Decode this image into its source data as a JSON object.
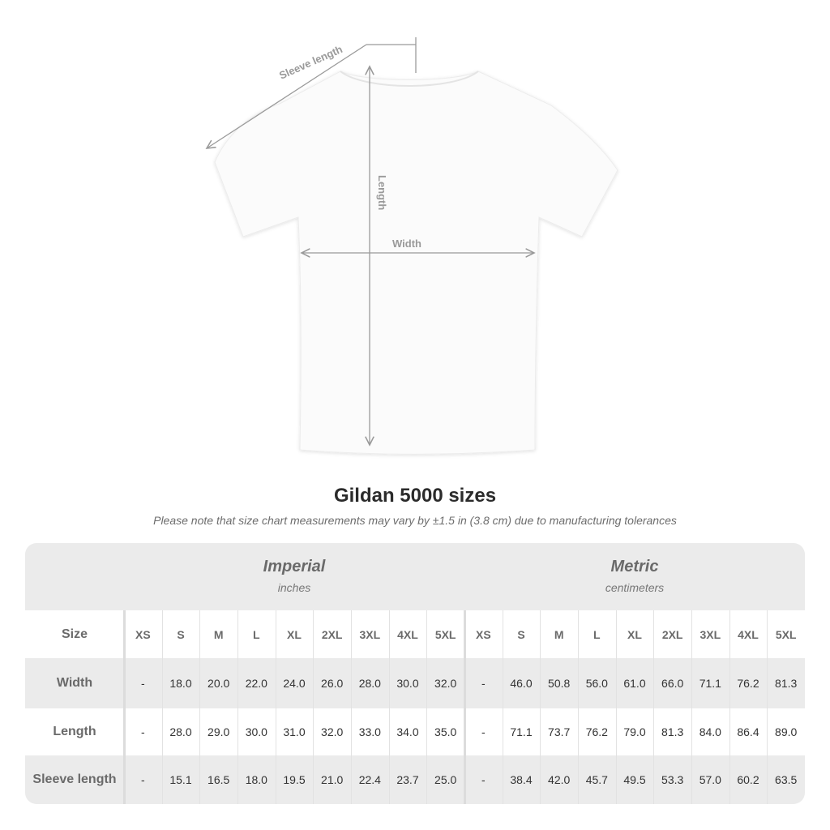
{
  "diagram": {
    "sleeve_label": "Sleeve length",
    "length_label": "Length",
    "width_label": "Width",
    "line_color": "#9a9a9a"
  },
  "title": "Gildan 5000 sizes",
  "note": "Please note that size chart measurements may vary by ±1.5 in (3.8 cm) due to manufacturing tolerances",
  "table": {
    "groups": [
      {
        "name": "Imperial",
        "unit": "inches"
      },
      {
        "name": "Metric",
        "unit": "centimeters"
      }
    ],
    "size_label": "Size",
    "sizes": [
      "XS",
      "S",
      "M",
      "L",
      "XL",
      "2XL",
      "3XL",
      "4XL",
      "5XL"
    ],
    "rows": [
      {
        "label": "Width",
        "imperial": [
          "-",
          "18.0",
          "20.0",
          "22.0",
          "24.0",
          "26.0",
          "28.0",
          "30.0",
          "32.0"
        ],
        "metric": [
          "-",
          "46.0",
          "50.8",
          "56.0",
          "61.0",
          "66.0",
          "71.1",
          "76.2",
          "81.3"
        ]
      },
      {
        "label": "Length",
        "imperial": [
          "-",
          "28.0",
          "29.0",
          "30.0",
          "31.0",
          "32.0",
          "33.0",
          "34.0",
          "35.0"
        ],
        "metric": [
          "-",
          "71.1",
          "73.7",
          "76.2",
          "79.0",
          "81.3",
          "84.0",
          "86.4",
          "89.0"
        ]
      },
      {
        "label": "Sleeve length",
        "imperial": [
          "-",
          "15.1",
          "16.5",
          "18.0",
          "19.5",
          "21.0",
          "22.4",
          "23.7",
          "25.0"
        ],
        "metric": [
          "-",
          "38.4",
          "42.0",
          "45.7",
          "49.5",
          "53.3",
          "57.0",
          "60.2",
          "63.5"
        ]
      }
    ],
    "band_color": "#ebebeb"
  }
}
